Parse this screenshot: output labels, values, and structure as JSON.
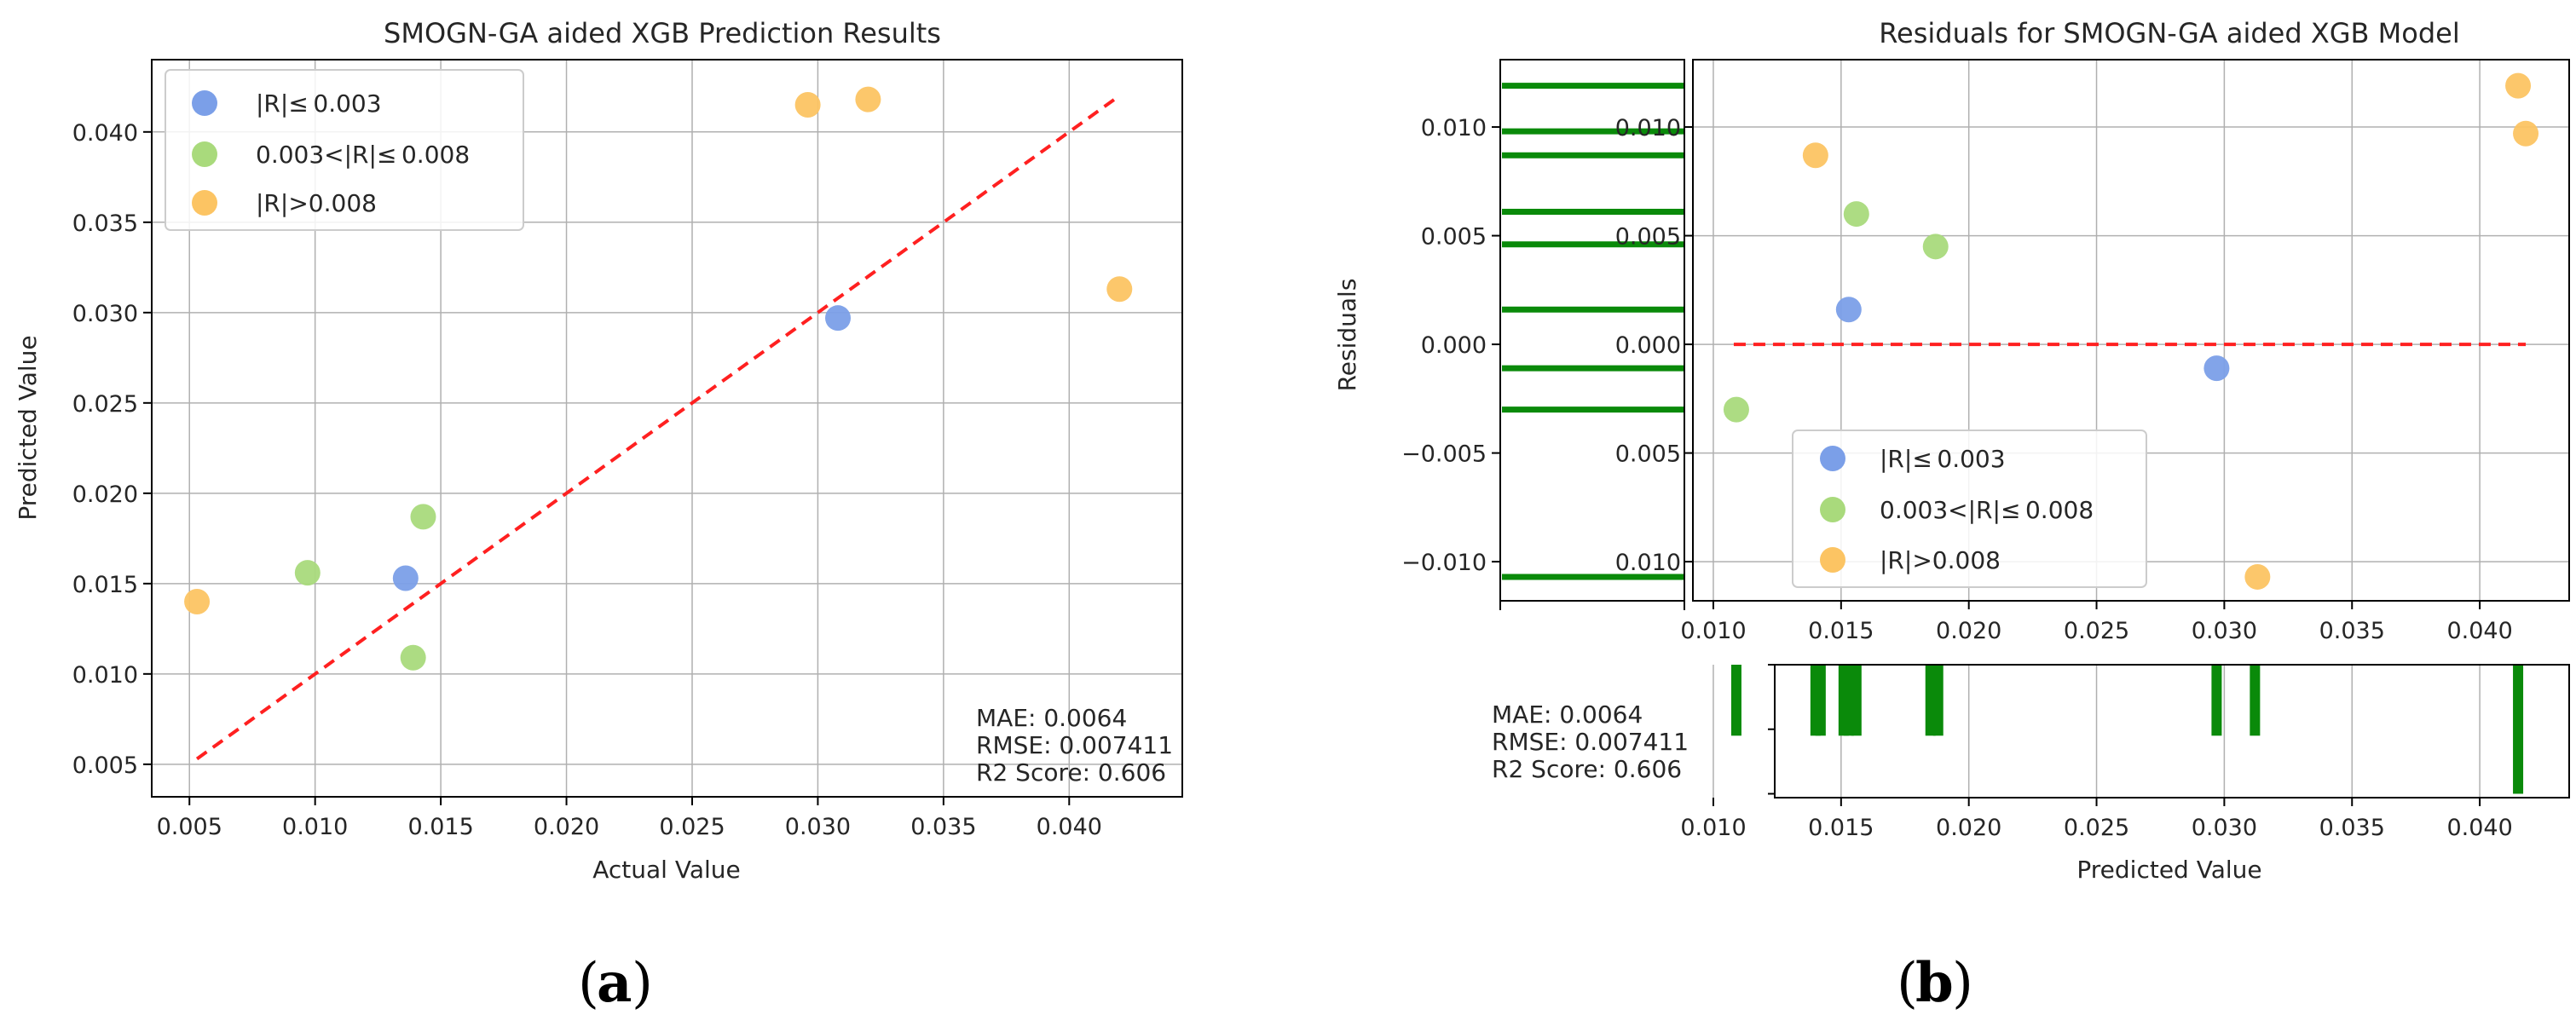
{
  "colors": {
    "blue": "#7b9fe8",
    "green": "#a9da7c",
    "orange": "#fcc463",
    "diag": "#ff2020",
    "rug": "#0a8a0a"
  },
  "captions": [
    "a",
    "b"
  ],
  "chart_data": [
    {
      "type": "scatter",
      "title": "SMOGN-GA aided XGB  Prediction Results",
      "xlabel": "Actual Value",
      "ylabel": "Predicted Value",
      "xlim": [
        0.0035,
        0.0445
      ],
      "ylim": [
        0.0032,
        0.044
      ],
      "xticks": [
        "0.005",
        "0.010",
        "0.015",
        "0.020",
        "0.025",
        "0.030",
        "0.035",
        "0.040"
      ],
      "yticks": [
        "0.005",
        "0.010",
        "0.015",
        "0.020",
        "0.025",
        "0.030",
        "0.035",
        "0.040"
      ],
      "grid": true,
      "legend_position": "top-left",
      "series": [
        {
          "name": "|R|≤ 0.003",
          "color_key": "blue",
          "points": [
            [
              0.0136,
              0.0153
            ],
            [
              0.0308,
              0.0297
            ]
          ]
        },
        {
          "name": "0.003<|R|≤ 0.008",
          "color_key": "green",
          "points": [
            [
              0.0097,
              0.0156
            ],
            [
              0.0143,
              0.0187
            ],
            [
              0.0139,
              0.0109
            ]
          ]
        },
        {
          "name": "|R|>0.008",
          "color_key": "orange",
          "points": [
            [
              0.0053,
              0.014
            ],
            [
              0.0296,
              0.0415
            ],
            [
              0.032,
              0.0418
            ],
            [
              0.042,
              0.0313
            ]
          ]
        }
      ],
      "reference_line": [
        [
          0.0053,
          0.0053
        ],
        [
          0.042,
          0.042
        ]
      ],
      "stats": [
        "MAE: 0.0064",
        "RMSE: 0.007411",
        "R2 Score: 0.606"
      ]
    },
    {
      "type": "scatter",
      "title": "Residuals for SMOGN-GA aided XGB Model",
      "xlabel": "Predicted Value",
      "ylabel": "Residuals",
      "xlim": [
        0.0092,
        0.0435
      ],
      "ylim": [
        -0.0118,
        0.0131
      ],
      "xticks": [
        "0.010",
        "0.015",
        "0.020",
        "0.025",
        "0.030",
        "0.035",
        "0.040"
      ],
      "yticks_left": [
        "0.010",
        "0.005",
        "0.000",
        "−0.005",
        "−0.010"
      ],
      "yticks_right": [
        "0.010",
        "0.005",
        "0.000",
        "0.005",
        "0.010"
      ],
      "grid": true,
      "legend_position": "lower-left",
      "series": [
        {
          "name": "|R|≤ 0.003",
          "color_key": "blue",
          "points": [
            [
              0.0153,
              0.0016
            ],
            [
              0.0297,
              -0.0011
            ]
          ]
        },
        {
          "name": "0.003<|R|≤ 0.008",
          "color_key": "green",
          "points": [
            [
              0.0109,
              -0.003
            ],
            [
              0.0156,
              0.006
            ],
            [
              0.0187,
              0.0045
            ]
          ]
        },
        {
          "name": "|R|>0.008",
          "color_key": "orange",
          "points": [
            [
              0.014,
              0.0087
            ],
            [
              0.0313,
              -0.0107
            ],
            [
              0.0415,
              0.0119
            ],
            [
              0.0418,
              0.0097
            ]
          ]
        }
      ],
      "zero_line": [
        [
          0.0108,
          0.0
        ],
        [
          0.0418,
          0.0
        ]
      ],
      "residual_rug": [
        0.0119,
        0.0098,
        0.0087,
        0.0061,
        0.0046,
        0.0016,
        -0.0011,
        -0.003,
        -0.0107
      ],
      "prediction_rug": [
        {
          "x": 0.0109,
          "h": 0.55
        },
        {
          "x": 0.014,
          "h": 0.55
        },
        {
          "x": 0.0142,
          "h": 0.55
        },
        {
          "x": 0.0151,
          "h": 0.55
        },
        {
          "x": 0.0153,
          "h": 0.55
        },
        {
          "x": 0.0156,
          "h": 0.55
        },
        {
          "x": 0.0185,
          "h": 0.55
        },
        {
          "x": 0.0188,
          "h": 0.55
        },
        {
          "x": 0.0297,
          "h": 0.55
        },
        {
          "x": 0.0312,
          "h": 0.55
        },
        {
          "x": 0.0415,
          "h": 1.0
        }
      ],
      "rug_ylim": [
        0,
        1.03
      ],
      "stats": [
        "MAE: 0.0064",
        "RMSE: 0.007411",
        "R2 Score: 0.606"
      ]
    }
  ]
}
